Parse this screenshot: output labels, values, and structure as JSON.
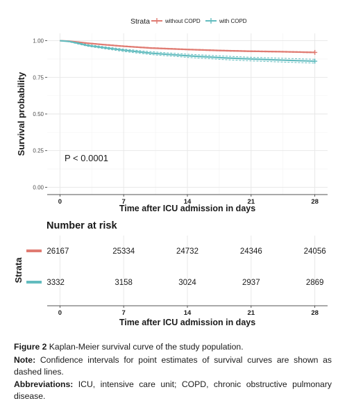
{
  "chart_data": [
    {
      "type": "line",
      "subtype": "kaplan-meier",
      "legend_title": "Strata",
      "legend_position": "top",
      "xlabel": "Time after ICU admission in days",
      "ylabel": "Survival probability",
      "xlim": [
        -1.4,
        29.4
      ],
      "ylim": [
        -0.05,
        1.05
      ],
      "xticks": [
        0,
        7,
        14,
        21,
        28
      ],
      "yticks": [
        0.0,
        0.25,
        0.5,
        0.75,
        1.0
      ],
      "ytick_labels": [
        "0.00",
        "0.25",
        "0.50",
        "0.75",
        "1.00"
      ],
      "grid": true,
      "annotation": "P < 0.0001",
      "series": [
        {
          "name": "without COPD",
          "color": "#e07b72",
          "x": [
            0,
            1,
            2,
            3,
            5,
            7,
            10,
            14,
            18,
            21,
            25,
            28
          ],
          "y": [
            1.0,
            0.997,
            0.99,
            0.983,
            0.972,
            0.962,
            0.95,
            0.94,
            0.932,
            0.928,
            0.924,
            0.92
          ],
          "ci_lower": [
            1.0,
            0.996,
            0.988,
            0.981,
            0.969,
            0.959,
            0.947,
            0.937,
            0.929,
            0.925,
            0.921,
            0.917
          ],
          "ci_upper": [
            1.0,
            0.998,
            0.992,
            0.985,
            0.975,
            0.965,
            0.953,
            0.943,
            0.935,
            0.931,
            0.927,
            0.923
          ]
        },
        {
          "name": "with COPD",
          "color": "#62bcbf",
          "x": [
            0,
            1,
            2,
            3,
            5,
            7,
            10,
            14,
            18,
            21,
            25,
            28
          ],
          "y": [
            1.0,
            0.995,
            0.982,
            0.968,
            0.951,
            0.935,
            0.915,
            0.897,
            0.883,
            0.875,
            0.866,
            0.86
          ],
          "ci_lower": [
            1.0,
            0.992,
            0.977,
            0.962,
            0.944,
            0.926,
            0.905,
            0.886,
            0.871,
            0.862,
            0.853,
            0.847
          ],
          "ci_upper": [
            1.0,
            0.997,
            0.987,
            0.974,
            0.958,
            0.943,
            0.925,
            0.908,
            0.895,
            0.887,
            0.879,
            0.873
          ]
        }
      ]
    },
    {
      "type": "table",
      "title": "Number at risk",
      "ylabel": "Strata",
      "xlabel": "Time after ICU admission in days",
      "xticks": [
        0,
        7,
        14,
        21,
        28
      ],
      "rows": [
        {
          "name": "without COPD",
          "color": "#e07b72",
          "values": [
            "26167",
            "25334",
            "24732",
            "24346",
            "24056"
          ]
        },
        {
          "name": "with COPD",
          "color": "#62bcbf",
          "values": [
            "3332",
            "3158",
            "3024",
            "2937",
            "2869"
          ]
        }
      ]
    }
  ],
  "caption": {
    "figure_label": "Figure 2",
    "figure_text": "Kaplan-Meier survival curve of the study population.",
    "note_label": "Note:",
    "note_text": "Confidence intervals for point estimates of survival curves are shown as dashed lines.",
    "abbr_label": "Abbreviations:",
    "abbr_text": "ICU, intensive care unit; COPD, chronic obstructive pulmonary disease."
  }
}
